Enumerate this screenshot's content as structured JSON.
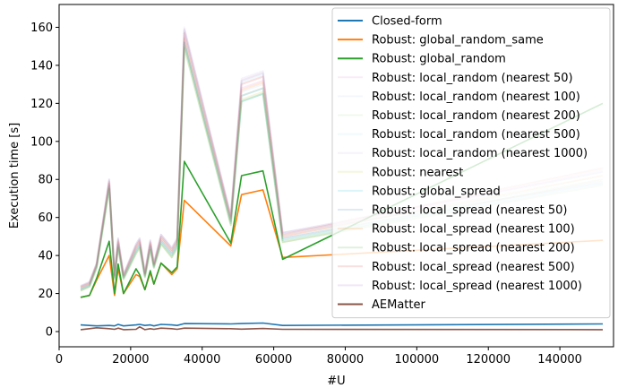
{
  "chart_data": {
    "type": "line",
    "title": "",
    "xlabel": "#U",
    "ylabel": "Execution time [s]",
    "xlim": [
      0,
      155000
    ],
    "ylim": [
      -8,
      172
    ],
    "xticks": [
      0,
      20000,
      40000,
      60000,
      80000,
      100000,
      120000,
      140000
    ],
    "xtick_labels": [
      "0",
      "20000",
      "40000",
      "60000",
      "80000",
      "100000",
      "120000",
      "140000"
    ],
    "yticks": [
      0,
      20,
      40,
      60,
      80,
      100,
      120,
      140,
      160
    ],
    "ytick_labels": [
      "0",
      "20",
      "40",
      "60",
      "80",
      "100",
      "120",
      "140",
      "160"
    ],
    "grid": false,
    "legend_position": "top-right",
    "x": [
      6000,
      8500,
      10500,
      14000,
      15500,
      16500,
      18000,
      21500,
      22500,
      24000,
      25500,
      26500,
      28500,
      31500,
      33000,
      35000,
      48000,
      51000,
      57000,
      62500,
      152000
    ],
    "series": [
      {
        "name": "Closed-form",
        "color": "#1f77b4",
        "opacity": 1,
        "values": [
          3.5,
          3.2,
          3.0,
          3.2,
          3.0,
          3.8,
          3.0,
          3.5,
          3.8,
          3.2,
          3.5,
          3.0,
          3.8,
          3.5,
          3.2,
          4.2,
          4.0,
          4.2,
          4.5,
          3.2,
          4.0
        ]
      },
      {
        "name": "Robust: global_random_same",
        "color": "#ff7f0e",
        "opacity": 1,
        "values": [
          18,
          19,
          27,
          40,
          19,
          33,
          20,
          30,
          29,
          22,
          31,
          25,
          36,
          30,
          33,
          69,
          45,
          72,
          74.5,
          39,
          48
        ]
      },
      {
        "name": "Robust: global_random",
        "color": "#2ca02c",
        "opacity": 1,
        "values": [
          18,
          19,
          28,
          47.5,
          20,
          35.5,
          20,
          33,
          30,
          22,
          32,
          25,
          36,
          31,
          34,
          89.5,
          46.5,
          82,
          84.5,
          38,
          120
        ]
      },
      {
        "name": "Robust: local_random (nearest 50)",
        "color": "#e377c2",
        "opacity": 0.15,
        "values": [
          23,
          25,
          35,
          78,
          29,
          47,
          29,
          44,
          47,
          30,
          46,
          35,
          49,
          42,
          47,
          155,
          59,
          128,
          132,
          50,
          85
        ]
      },
      {
        "name": "Robust: local_random (nearest 100)",
        "color": "#aec7e8",
        "opacity": 0.15,
        "values": [
          22.5,
          24.5,
          34.5,
          77,
          28.5,
          46,
          28.5,
          43,
          46,
          29.5,
          45,
          34.5,
          48,
          41,
          46,
          153,
          58,
          126,
          130,
          49,
          84
        ]
      },
      {
        "name": "Robust: local_random (nearest 200)",
        "color": "#98df8a",
        "opacity": 0.15,
        "values": [
          22,
          24,
          34,
          76,
          28,
          45,
          28,
          42,
          45,
          29,
          44,
          34,
          47,
          40,
          45,
          151,
          57,
          124,
          128,
          48,
          82
        ]
      },
      {
        "name": "Robust: local_random (nearest 500)",
        "color": "#9edae5",
        "opacity": 0.15,
        "values": [
          23.5,
          25.5,
          35.5,
          79,
          29.5,
          48,
          29.5,
          45,
          48,
          30.5,
          47,
          35.5,
          50,
          43,
          48,
          158,
          60,
          131,
          135,
          51,
          80
        ]
      },
      {
        "name": "Robust: local_random (nearest 1000)",
        "color": "#c5b0d5",
        "opacity": 0.15,
        "values": [
          24,
          26,
          36,
          80,
          30,
          49,
          30,
          46,
          49,
          31,
          48,
          36,
          51,
          44,
          49,
          160,
          61,
          133,
          137,
          52,
          78
        ]
      },
      {
        "name": "Robust: nearest",
        "color": "#bcbd22",
        "opacity": 0.15,
        "values": [
          21.5,
          23.5,
          33.5,
          75,
          27.5,
          44,
          27.5,
          41,
          44,
          28.5,
          43,
          33.5,
          46,
          39,
          44,
          150,
          56,
          122,
          126,
          47,
          80
        ]
      },
      {
        "name": "Robust: global_spread",
        "color": "#17becf",
        "opacity": 0.15,
        "values": [
          22,
          24,
          34,
          76,
          28,
          45,
          28,
          42,
          45,
          29,
          44,
          34,
          47,
          40,
          45,
          152,
          57,
          121,
          125,
          48,
          78
        ]
      },
      {
        "name": "Robust: local_spread (nearest 50)",
        "color": "#1f77b4",
        "opacity": 0.15,
        "values": [
          22.5,
          24.5,
          34.5,
          77,
          28.5,
          46,
          28.5,
          43,
          46,
          29.5,
          45,
          34.5,
          48,
          41,
          46,
          152,
          58,
          124,
          128,
          49,
          79
        ]
      },
      {
        "name": "Robust: local_spread (nearest 100)",
        "color": "#ff7f0e",
        "opacity": 0.15,
        "values": [
          23,
          25,
          35,
          78,
          29,
          47,
          29,
          44,
          47,
          30,
          46,
          35,
          49,
          42,
          47,
          154,
          59,
          127,
          131,
          50,
          82
        ]
      },
      {
        "name": "Robust: local_spread (nearest 200)",
        "color": "#2ca02c",
        "opacity": 0.15,
        "values": [
          21.5,
          23.5,
          33.5,
          75,
          27.5,
          44,
          27.5,
          41,
          44,
          28.5,
          43,
          33.5,
          46,
          39,
          44,
          149,
          56,
          121,
          125,
          47,
          77
        ]
      },
      {
        "name": "Robust: local_spread (nearest 500)",
        "color": "#d62728",
        "opacity": 0.15,
        "values": [
          23.5,
          25.5,
          35.5,
          79,
          29.5,
          48,
          29.5,
          45,
          48,
          30.5,
          47,
          35.5,
          50,
          43,
          48,
          157,
          60,
          130,
          134,
          51,
          86
        ]
      },
      {
        "name": "Robust: local_spread (nearest 1000)",
        "color": "#9467bd",
        "opacity": 0.15,
        "values": [
          24,
          26,
          36,
          80,
          30,
          49,
          30,
          46,
          49,
          31,
          48,
          36,
          51,
          44,
          49,
          159,
          61,
          132,
          136,
          52,
          84
        ]
      },
      {
        "name": "AEMatter",
        "color": "#8c564b",
        "opacity": 1,
        "values": [
          1.0,
          1.5,
          2.0,
          1.5,
          1.2,
          1.8,
          1.0,
          1.2,
          2.5,
          1.0,
          1.5,
          1.2,
          1.8,
          1.5,
          1.2,
          1.8,
          1.5,
          1.3,
          1.6,
          1.2,
          1.0
        ]
      }
    ]
  }
}
